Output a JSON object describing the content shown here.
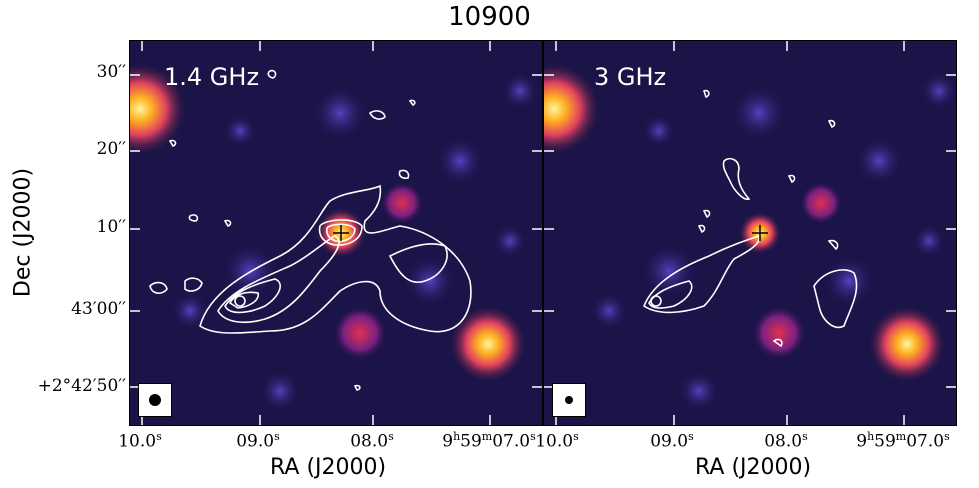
{
  "figure": {
    "title": "10900",
    "ylabel": "Dec (J2000)",
    "xlabel_left": "RA (J2000)",
    "xlabel_right": "RA (J2000)"
  },
  "panels": [
    {
      "label": "1.4 GHz",
      "marker": "plus-marker"
    },
    {
      "label": "3 GHz",
      "marker": "plus-marker"
    }
  ],
  "yticks": [
    "30′′",
    "20′′",
    "10′′",
    "43′00′′",
    "+2°42′50′′"
  ],
  "xticks_left": [
    "10.0",
    "09.0",
    "08.0",
    "9",
    "59",
    "07.0"
  ],
  "xticks_right": [
    "10.0",
    "09.0",
    "08.0",
    "9",
    "59",
    "07.0"
  ],
  "colors": {
    "background": "#141040",
    "contour": "#ffffff",
    "source_hot": "#ffd040"
  }
}
